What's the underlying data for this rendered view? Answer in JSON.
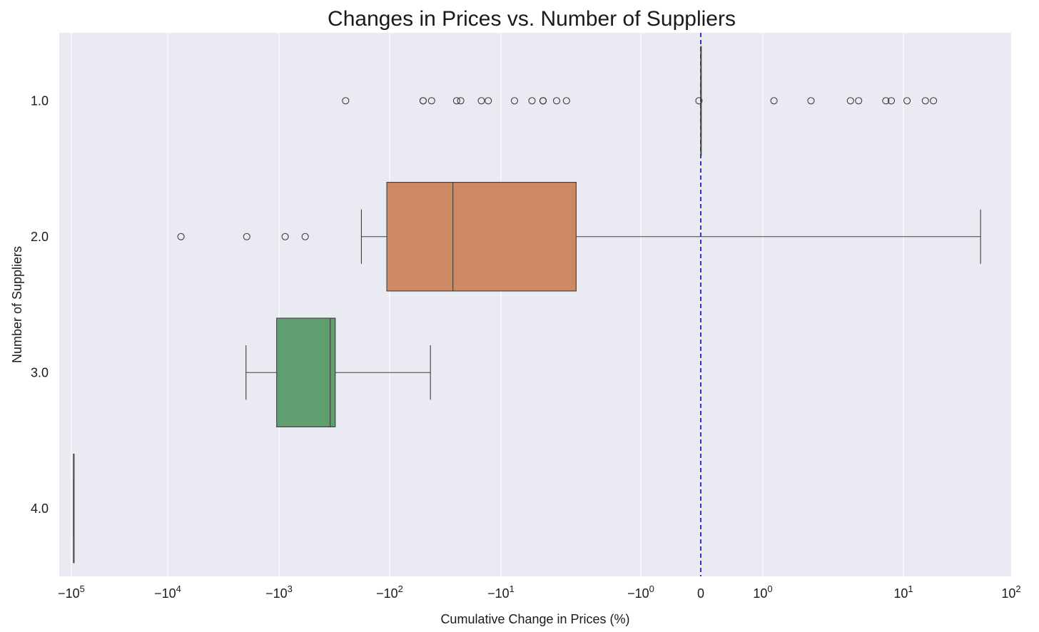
{
  "chart_data": {
    "type": "boxplot",
    "title": "Changes in Prices vs. Number of Suppliers",
    "xlabel": "Cumulative Change in Prices (%)",
    "ylabel": "Number of Suppliers",
    "x_scale": "symlog",
    "x_tick_labels": [
      "−10^5",
      "−10^4",
      "−10^3",
      "−10^2",
      "−10^1",
      "−10^0",
      "0",
      "10^0",
      "10^1",
      "10^2"
    ],
    "xlim": [
      -100000,
      100
    ],
    "reference_line": {
      "x": 0,
      "style": "dashed",
      "color": "#1f1fd6"
    },
    "categories": [
      "1.0",
      "2.0",
      "3.0",
      "4.0"
    ],
    "grid": true,
    "colors": {
      "background": "#eaeaf2",
      "grid": "#ffffff",
      "box_2": "#cc8963",
      "box_3": "#5f9e6e",
      "line": "#3d3d3d"
    },
    "boxes": [
      {
        "category": "1.0",
        "whisker_low": 0,
        "q1": 0,
        "median": 0,
        "q3": 0,
        "whisker_high": 0,
        "outliers": [
          -250,
          -50,
          -50,
          -42,
          -25,
          -23,
          -15,
          -13,
          -8,
          -6,
          -5,
          -5,
          -5,
          -4,
          -3.4,
          -0.03,
          1.2,
          2.2,
          4.2,
          4.8,
          7.5,
          8.2,
          10.8,
          16,
          19
        ]
      },
      {
        "category": "2.0",
        "whisker_low": -180,
        "q1": -106,
        "median": -27,
        "q3": -2.9,
        "whisker_high": 52,
        "outliers": [
          -7600,
          -1950,
          -880,
          -580
        ]
      },
      {
        "category": "3.0",
        "whisker_low": -1980,
        "q1": -1050,
        "median": -345,
        "q3": -310,
        "whisker_high": -43,
        "outliers": []
      },
      {
        "category": "4.0",
        "whisker_low": -95000,
        "q1": -95000,
        "median": -95000,
        "q3": -95000,
        "whisker_high": -95000,
        "outliers": []
      }
    ]
  }
}
